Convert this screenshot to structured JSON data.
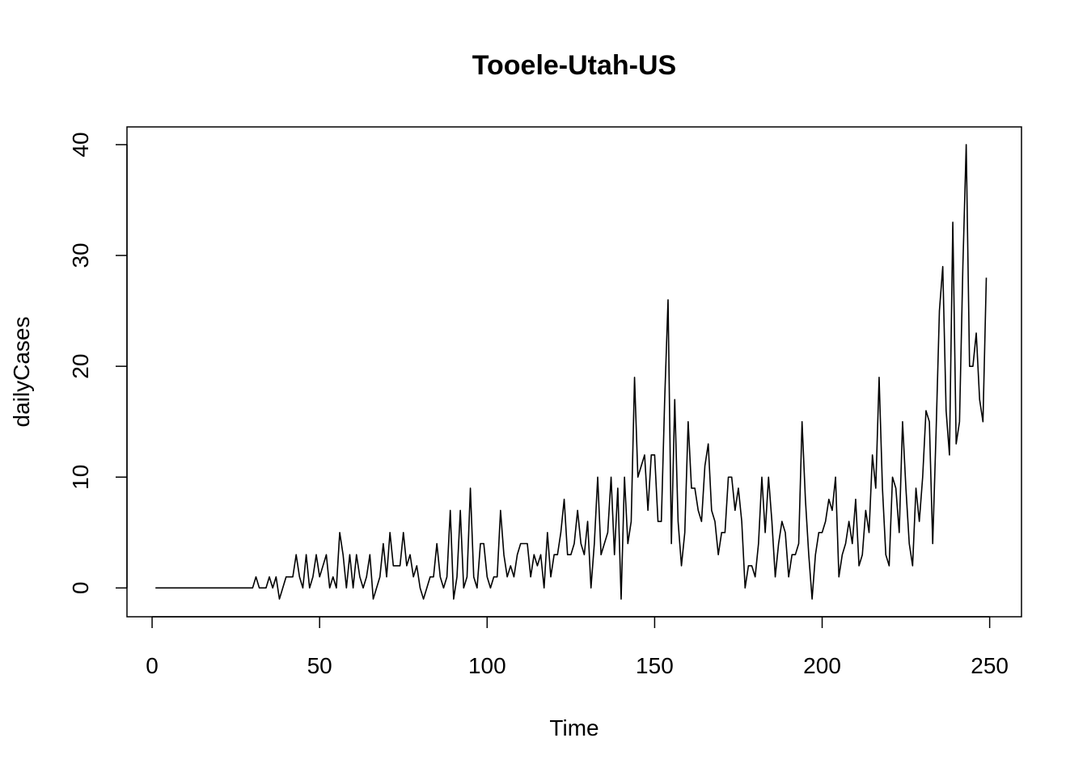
{
  "chart_data": {
    "type": "line",
    "title": "Tooele-Utah-US",
    "xlabel": "Time",
    "ylabel": "dailyCases",
    "xlim": [
      -7.5,
      259.5
    ],
    "ylim": [
      -2.6,
      41.6
    ],
    "xticks": [
      0,
      50,
      100,
      150,
      200,
      250
    ],
    "yticks": [
      0,
      10,
      20,
      30,
      40
    ],
    "grid": false,
    "legend": "none",
    "line_color": "#000000",
    "series": [
      {
        "x_start": 1,
        "values": [
          0,
          0,
          0,
          0,
          0,
          0,
          0,
          0,
          0,
          0,
          0,
          0,
          0,
          0,
          0,
          0,
          0,
          0,
          0,
          0,
          0,
          0,
          0,
          0,
          0,
          0,
          0,
          0,
          0,
          0,
          1,
          0,
          0,
          0,
          1,
          0,
          1,
          -1,
          0,
          1,
          1,
          1,
          3,
          1,
          0,
          3,
          0,
          1,
          3,
          1,
          2,
          3,
          0,
          1,
          0,
          5,
          3,
          0,
          3,
          0,
          3,
          1,
          0,
          1,
          3,
          -1,
          0,
          1,
          4,
          1,
          5,
          2,
          2,
          2,
          5,
          2,
          3,
          1,
          2,
          0,
          -1,
          0,
          1,
          1,
          4,
          1,
          0,
          1,
          7,
          -1,
          1,
          7,
          0,
          1,
          9,
          1,
          0,
          4,
          4,
          1,
          0,
          1,
          1,
          7,
          3,
          1,
          2,
          1,
          3,
          4,
          4,
          4,
          1,
          3,
          2,
          3,
          0,
          5,
          1,
          3,
          3,
          5,
          8,
          3,
          3,
          4,
          7,
          4,
          3,
          6,
          0,
          4,
          10,
          3,
          4,
          5,
          10,
          3,
          9,
          -1,
          10,
          4,
          6,
          19,
          10,
          11,
          12,
          7,
          12,
          12,
          6,
          6,
          17,
          26,
          4,
          17,
          6,
          2,
          5,
          15,
          9,
          9,
          7,
          6,
          11,
          13,
          7,
          6,
          3,
          5,
          5,
          10,
          10,
          7,
          9,
          6,
          0,
          2,
          2,
          1,
          4,
          10,
          5,
          10,
          6,
          1,
          4,
          6,
          5,
          1,
          3,
          3,
          4,
          15,
          8,
          3,
          -1,
          3,
          5,
          5,
          6,
          8,
          7,
          10,
          1,
          3,
          4,
          6,
          4,
          8,
          2,
          3,
          7,
          5,
          12,
          9,
          19,
          9,
          3,
          2,
          10,
          9,
          5,
          15,
          9,
          4,
          2,
          9,
          6,
          10,
          16,
          15,
          4,
          14,
          25,
          29,
          16,
          12,
          33,
          13,
          15,
          29,
          40,
          20,
          20,
          23,
          17,
          15,
          28
        ]
      }
    ]
  }
}
